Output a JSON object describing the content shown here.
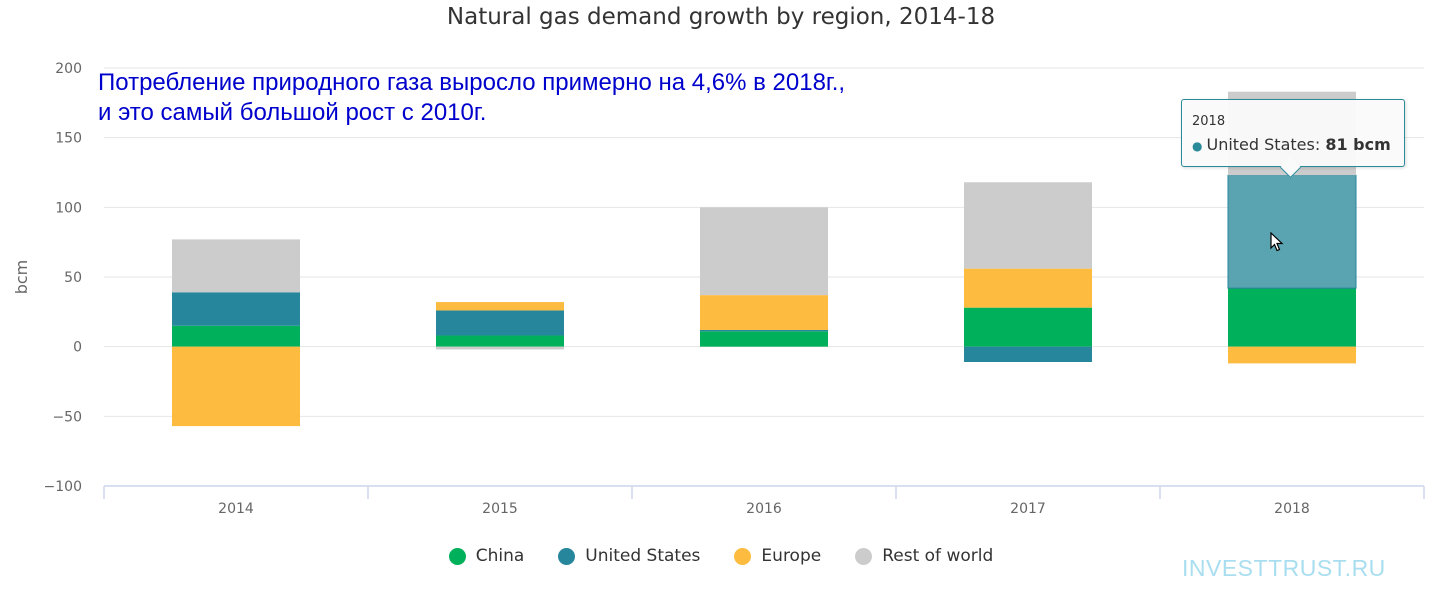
{
  "header": {
    "title": "Natural gas demand growth by region, 2014-18"
  },
  "annotation": {
    "line1": "Потребление природного газа выросло примерно на 4,6% в 2018г.,",
    "line2": "и это самый большой рост с 2010г."
  },
  "watermark": "INVESTTRUST.RU",
  "tooltip": {
    "category": "2018",
    "series": "United States",
    "separator": ": ",
    "value": "81 bcm",
    "bullet": "●"
  },
  "colors": {
    "China": "#00b05a",
    "United States": "#26869b",
    "Europe": "#fdbb40",
    "Rest of world": "#cccccc",
    "grid": "#e6e6e6",
    "axis": "#ccd6eb",
    "tooltip_border": "#2b8a9a"
  },
  "chart_data": {
    "type": "bar",
    "stacked": true,
    "title": "Natural gas demand growth by region, 2014-18",
    "xlabel": "",
    "ylabel": "bcm",
    "ylim": [
      -100,
      200
    ],
    "yticks": [
      -100,
      -50,
      0,
      50,
      100,
      150,
      200
    ],
    "grid": true,
    "legend_position": "bottom-center",
    "categories": [
      "2014",
      "2015",
      "2016",
      "2017",
      "2018"
    ],
    "series": [
      {
        "name": "China",
        "values": [
          15,
          8,
          11,
          28,
          42
        ]
      },
      {
        "name": "United States",
        "values": [
          24,
          18,
          1,
          -11,
          81
        ]
      },
      {
        "name": "Europe",
        "values": [
          -57,
          6,
          25,
          28,
          -12
        ]
      },
      {
        "name": "Rest of world",
        "values": [
          38,
          -2,
          63,
          62,
          60
        ]
      }
    ],
    "highlighted": {
      "category": "2018",
      "series": "United States"
    }
  }
}
